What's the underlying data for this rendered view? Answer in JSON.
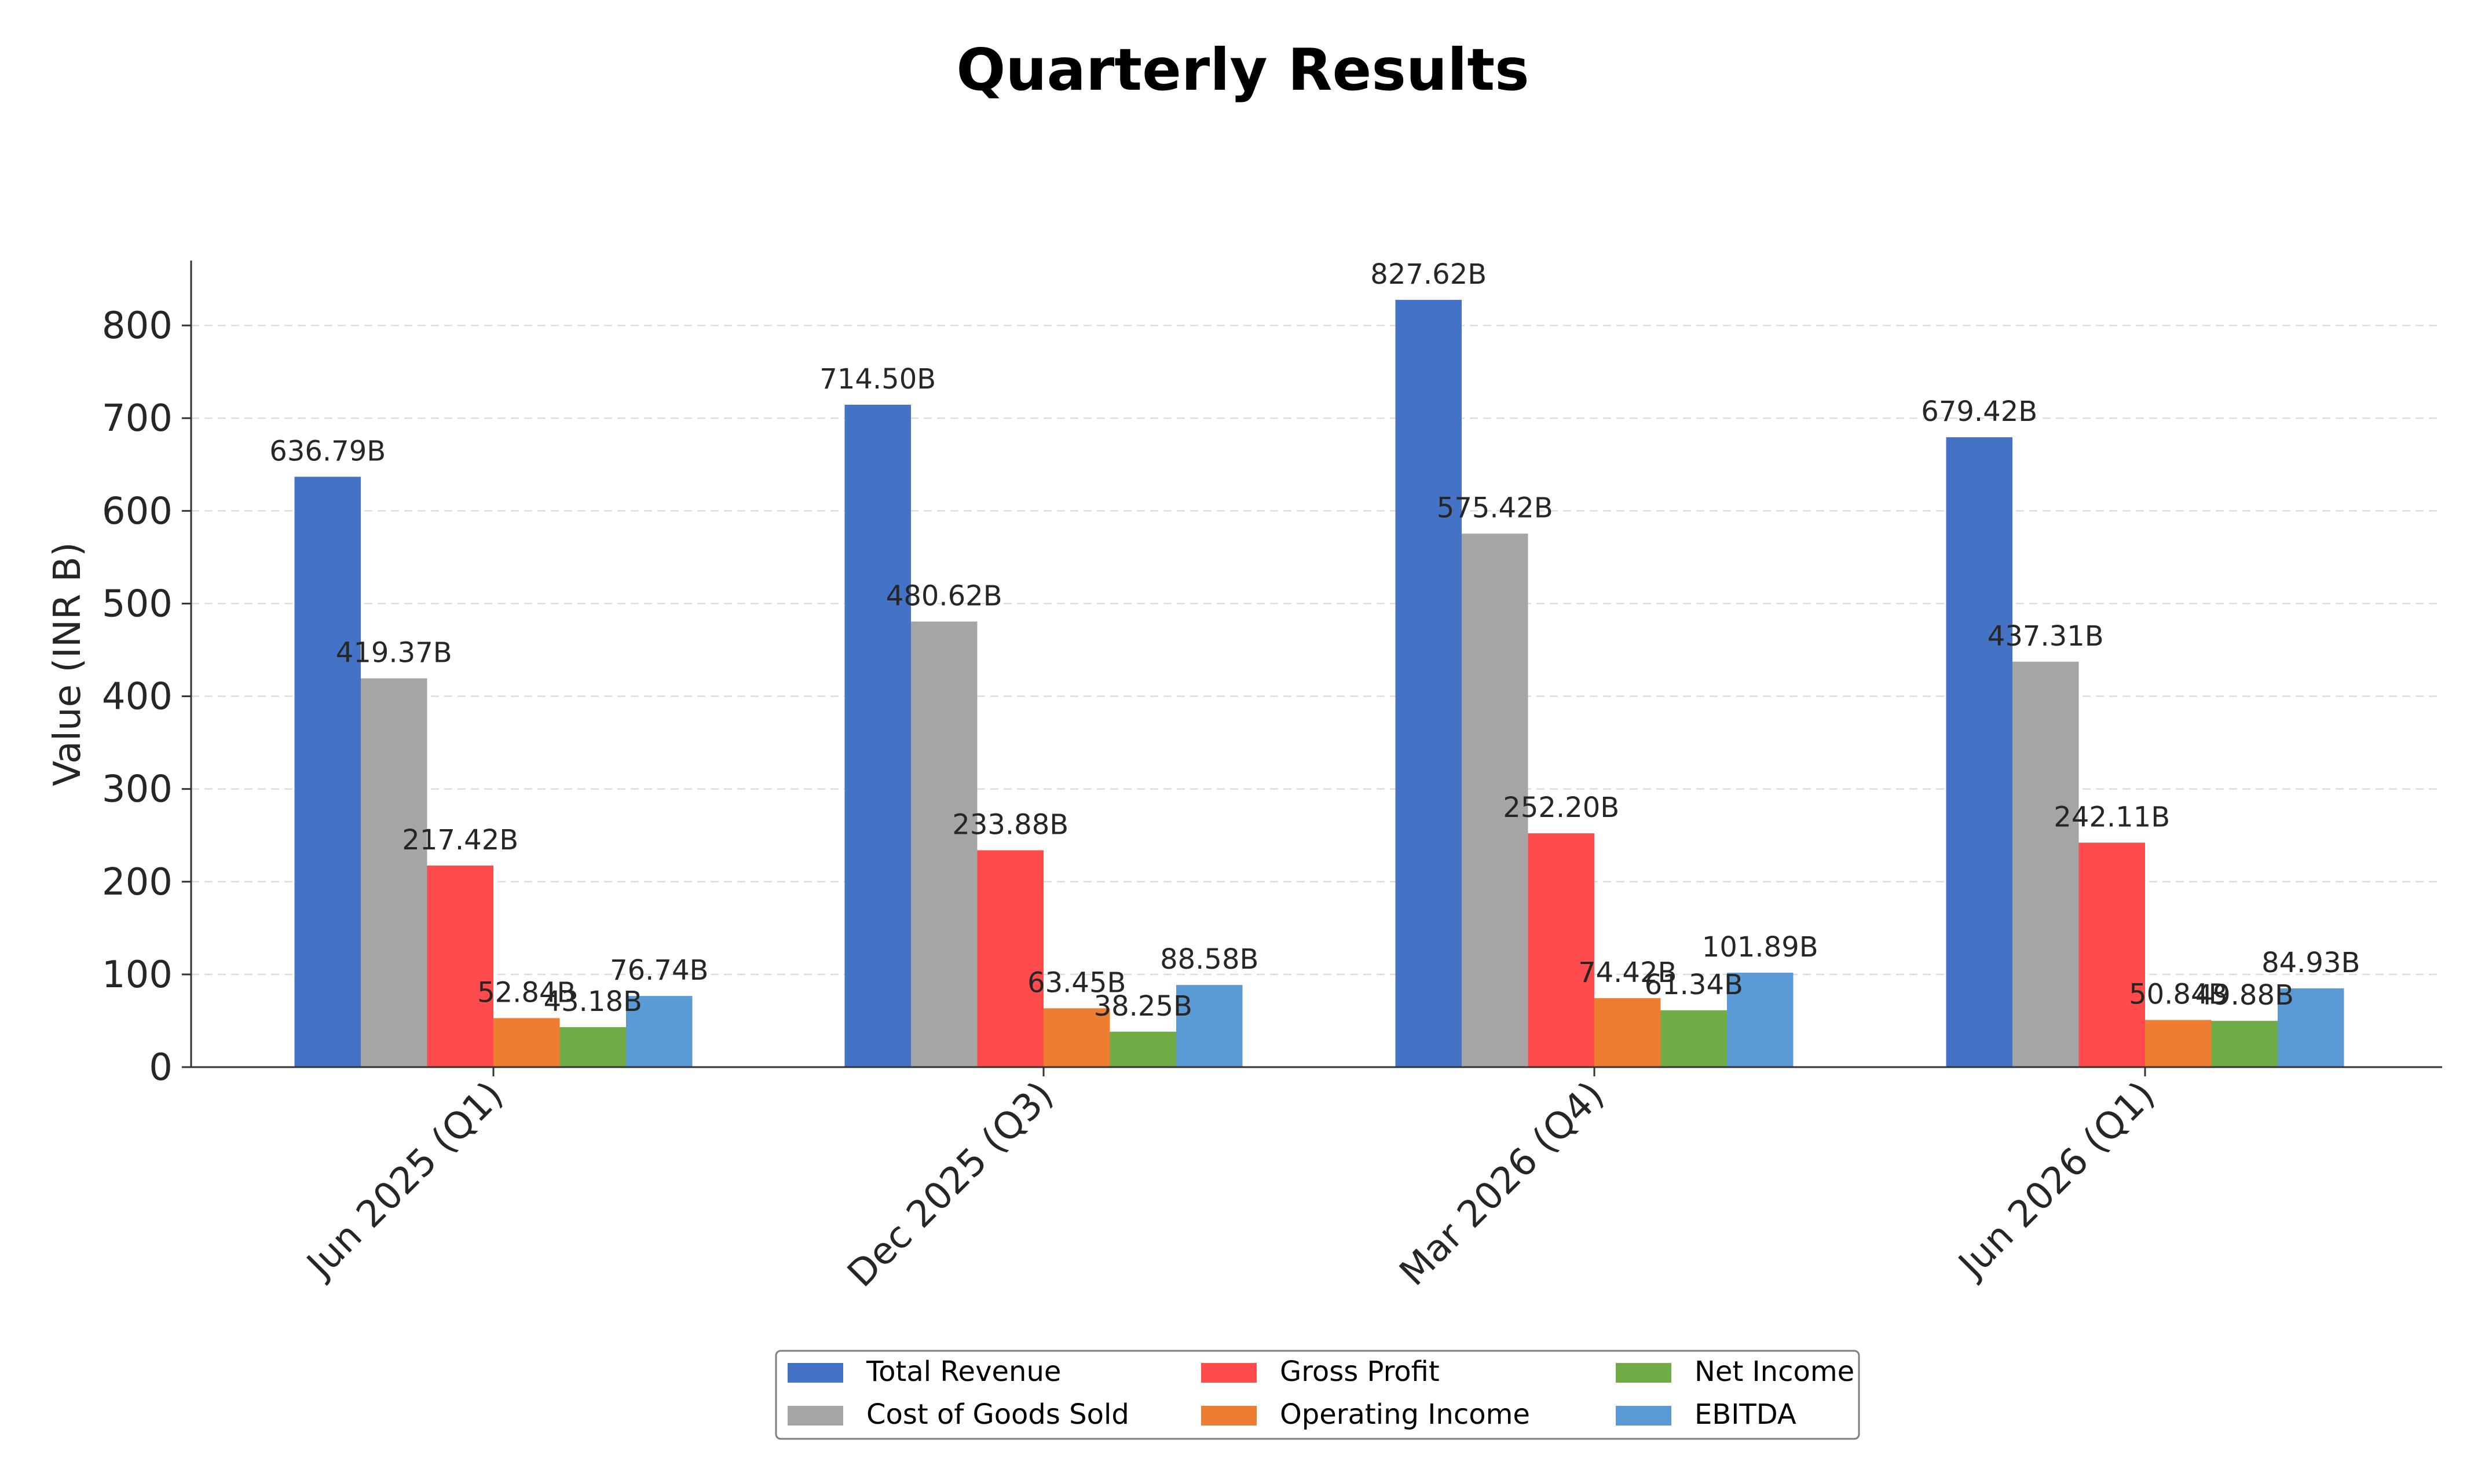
{
  "chart_data": {
    "type": "bar",
    "title": "Quarterly Results",
    "xlabel": "",
    "ylabel": "Value (INR B)",
    "ylim": [
      0,
      870
    ],
    "yticks": [
      0,
      100,
      200,
      300,
      400,
      500,
      600,
      700,
      800
    ],
    "grid": true,
    "legend_position": "bottom-center",
    "value_suffix": "B",
    "categories": [
      "Jun 2025 (Q1)",
      "Dec 2025 (Q3)",
      "Mar 2026 (Q4)",
      "Jun 2026 (Q1)"
    ],
    "series": [
      {
        "name": "Total Revenue",
        "color": "#4472C4",
        "values": [
          636.79,
          714.5,
          827.62,
          679.42
        ]
      },
      {
        "name": "Cost of Goods Sold",
        "color": "#A5A5A5",
        "values": [
          419.37,
          480.62,
          575.42,
          437.31
        ]
      },
      {
        "name": "Gross Profit",
        "color": "#FF4B4B",
        "values": [
          217.42,
          233.88,
          252.2,
          242.11
        ]
      },
      {
        "name": "Operating Income",
        "color": "#ED7D31",
        "values": [
          52.84,
          63.45,
          74.42,
          50.84
        ]
      },
      {
        "name": "Net Income",
        "color": "#70AD47",
        "values": [
          43.18,
          38.25,
          61.34,
          49.88
        ]
      },
      {
        "name": "EBITDA",
        "color": "#5B9BD5",
        "values": [
          76.74,
          88.58,
          101.89,
          84.93
        ]
      }
    ]
  }
}
